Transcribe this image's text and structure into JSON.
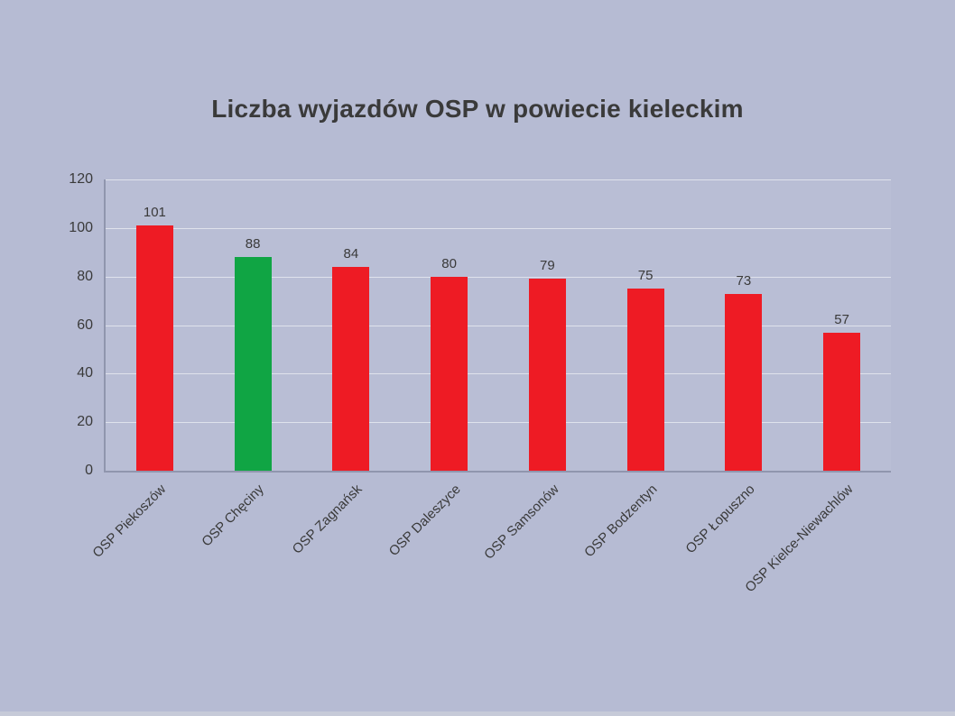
{
  "title": "Liczba wyjazdów OSP w powiecie kieleckim",
  "colors": {
    "background": "#b6bbd3",
    "bar_default": "#ee1b24",
    "bar_highlight": "#10a544",
    "axis": "#9096ae",
    "text": "#3a3a3a"
  },
  "chart_data": {
    "type": "bar",
    "title": "Liczba wyjazdów OSP w powiecie kieleckim",
    "categories": [
      "OSP Piekoszów",
      "OSP Chęciny",
      "OSP Zagnańsk",
      "OSP Daleszyce",
      "OSP Samsonów",
      "OSP Bodzentyn",
      "OSP Łopuszno",
      "OSP Kielce-Niewachlów"
    ],
    "values": [
      101,
      88,
      84,
      80,
      79,
      75,
      73,
      57
    ],
    "bar_colors": [
      "#ee1b24",
      "#10a544",
      "#ee1b24",
      "#ee1b24",
      "#ee1b24",
      "#ee1b24",
      "#ee1b24",
      "#ee1b24"
    ],
    "highlight_index": 1,
    "xlabel": "",
    "ylabel": "",
    "ylim": [
      0,
      120
    ],
    "yticks": [
      0,
      20,
      40,
      60,
      80,
      100,
      120
    ],
    "grid": true,
    "legend_position": "none",
    "value_labels_shown": true
  }
}
